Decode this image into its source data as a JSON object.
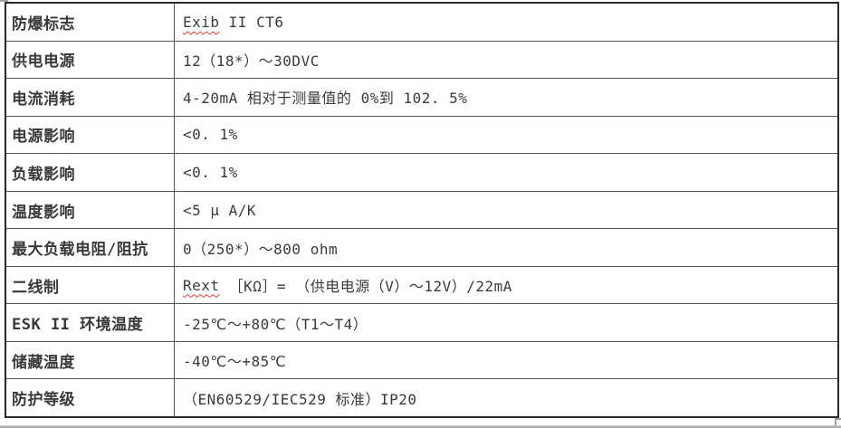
{
  "colors": {
    "text": "#3a3a3a",
    "border_outer": "#2a2a2a",
    "border_inner": "#555555",
    "squiggle": "#dd3a2e",
    "handle": "#a0a0a0",
    "edge_strip_top": "#cccccc",
    "edge_strip_bottom": "#a3a3a3"
  },
  "table": {
    "rows": [
      {
        "label": "防爆标志",
        "mark": "Exib",
        "value": " II CT6"
      },
      {
        "label": "供电电源",
        "mark": "",
        "value": "12（18*）～30DVC"
      },
      {
        "label": "电流消耗",
        "mark": "",
        "value": "4-20mA 相对于测量值的 0%到 102. 5%"
      },
      {
        "label": "电源影响",
        "mark": "",
        "value": "<0. 1%"
      },
      {
        "label": "负载影响",
        "mark": "",
        "value": "<0. 1%"
      },
      {
        "label": "温度影响",
        "mark": "",
        "value": "<5 μ A/K"
      },
      {
        "label": "最大负载电阻/阻抗",
        "mark": "",
        "value": "0（250*）～800 ohm"
      },
      {
        "label": "二线制",
        "mark": "Rext",
        "value": " ［KΩ］= （供电电源（V）～12V）/22mA"
      },
      {
        "label": "ESK II 环境温度",
        "mark": "",
        "value": "-25℃～+80℃（T1～T4）"
      },
      {
        "label": "储藏温度",
        "mark": "",
        "value": "-40℃～+85℃"
      },
      {
        "label": "防护等级",
        "mark": "",
        "value": "（EN60529/IEC529 标准）IP20"
      }
    ]
  }
}
